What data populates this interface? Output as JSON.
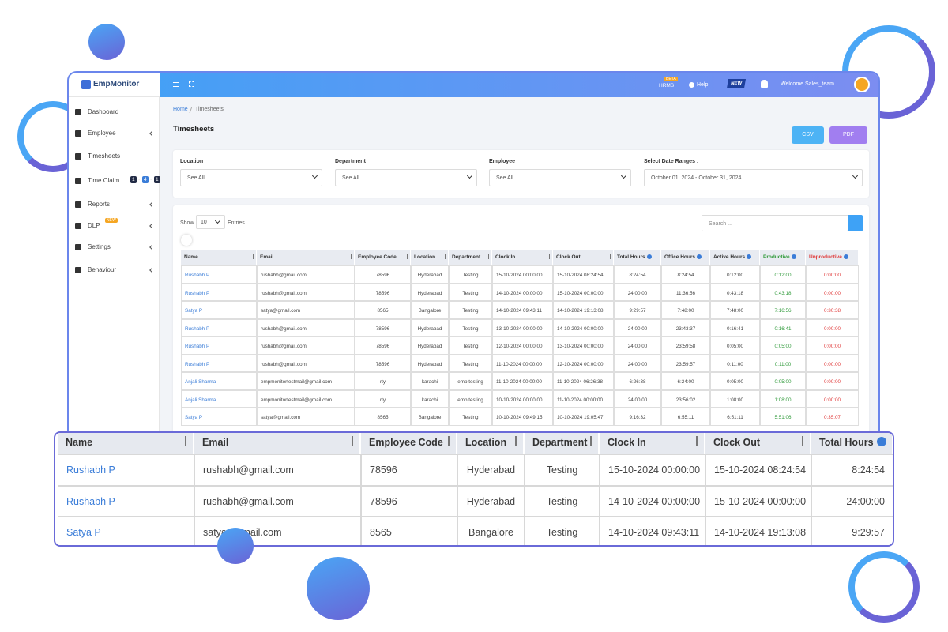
{
  "brand": "EmpMonitor",
  "topbar": {
    "hrms": "HRMS",
    "beta": "BETA",
    "help": "Help",
    "new_badge": "NEW",
    "welcome": "Welcome Sales_team"
  },
  "sidebar": [
    {
      "label": "Dashboard",
      "submenu": false
    },
    {
      "label": "Employee",
      "submenu": true
    },
    {
      "label": "Timesheets",
      "submenu": false
    },
    {
      "label": "Time Claim",
      "submenu": false,
      "badges": [
        "1",
        "4",
        "1"
      ],
      "badge_separator": "-"
    },
    {
      "label": "Reports",
      "submenu": true
    },
    {
      "label": "DLP",
      "submenu": true,
      "badge": "NEW"
    },
    {
      "label": "Settings",
      "submenu": true
    },
    {
      "label": "Behaviour",
      "submenu": true
    }
  ],
  "breadcrumb": [
    "Home",
    "Timesheets"
  ],
  "page_title": "Timesheets",
  "buttons": [
    "CSV",
    "PDF"
  ],
  "filters": [
    {
      "label": "Location",
      "value": "See All"
    },
    {
      "label": "Department",
      "value": "See All"
    },
    {
      "label": "Employee",
      "value": "See All"
    },
    {
      "label": "Select Date Ranges :",
      "value": "October 01, 2024 - October 31, 2024"
    }
  ],
  "table_controls": {
    "show": "Show",
    "page_size": "10",
    "entries": "Entries",
    "search_placeholder": "Search ..."
  },
  "table": {
    "columns": [
      {
        "label": "Name",
        "cell_color": "#3b7dd8"
      },
      {
        "label": "Email"
      },
      {
        "label": "Employee Code"
      },
      {
        "label": "Location"
      },
      {
        "label": "Department"
      },
      {
        "label": "Clock In"
      },
      {
        "label": "Clock Out"
      },
      {
        "label": "Total Hours"
      },
      {
        "label": "Office Hours"
      },
      {
        "label": "Active Hours"
      },
      {
        "label": "Productive",
        "color": "#2f9a3a"
      },
      {
        "label": "Unproductive",
        "color": "#e03b3b"
      }
    ],
    "rows": [
      [
        "Rushabh P",
        "rushabh@gmail.com",
        "78596",
        "Hyderabad",
        "Testing",
        "15-10-2024 00:00:00",
        "15-10-2024 08:24:54",
        "8:24:54",
        "8:24:54",
        "0:12:00",
        "0:12:00",
        "0:00:00"
      ],
      [
        "Rushabh P",
        "rushabh@gmail.com",
        "78596",
        "Hyderabad",
        "Testing",
        "14-10-2024 00:00:00",
        "15-10-2024 00:00:00",
        "24:00:00",
        "11:36:56",
        "0:43:18",
        "0:43:18",
        "0:00:00"
      ],
      [
        "Satya P",
        "satya@gmail.com",
        "8565",
        "Bangalore",
        "Testing",
        "14-10-2024 09:43:11",
        "14-10-2024 19:13:08",
        "9:29:57",
        "7:48:00",
        "7:48:00",
        "7:16:56",
        "0:30:38"
      ],
      [
        "Rushabh P",
        "rushabh@gmail.com",
        "78596",
        "Hyderabad",
        "Testing",
        "13-10-2024 00:00:00",
        "14-10-2024 00:00:00",
        "24:00:00",
        "23:43:37",
        "0:16:41",
        "0:16:41",
        "0:00:00"
      ],
      [
        "Rushabh P",
        "rushabh@gmail.com",
        "78596",
        "Hyderabad",
        "Testing",
        "12-10-2024 00:00:00",
        "13-10-2024 00:00:00",
        "24:00:00",
        "23:59:58",
        "0:05:00",
        "0:05:00",
        "0:00:00"
      ],
      [
        "Rushabh P",
        "rushabh@gmail.com",
        "78596",
        "Hyderabad",
        "Testing",
        "11-10-2024 00:00:00",
        "12-10-2024 00:00:00",
        "24:00:00",
        "23:59:57",
        "0:11:00",
        "0:11:00",
        "0:00:00"
      ],
      [
        "Anjali Sharma",
        "empmonitortestmail@gmail.com",
        "rty",
        "karachi",
        "emp testing",
        "11-10-2024 00:00:00",
        "11-10-2024 06:26:38",
        "6:26:38",
        "6:24:00",
        "0:05:00",
        "0:05:00",
        "0:00:00"
      ],
      [
        "Anjali Sharma",
        "empmonitortestmail@gmail.com",
        "rty",
        "karachi",
        "emp testing",
        "10-10-2024 00:00:00",
        "11-10-2024 00:00:00",
        "24:00:00",
        "23:56:02",
        "1:08:00",
        "1:08:00",
        "0:00:00"
      ],
      [
        "Satya P",
        "satya@gmail.com",
        "8565",
        "Bangalore",
        "Testing",
        "10-10-2024 09:49:15",
        "10-10-2024 19:05:47",
        "9:16:32",
        "6:55:11",
        "6:51:11",
        "5:51:06",
        "0:35:07"
      ]
    ]
  }
}
